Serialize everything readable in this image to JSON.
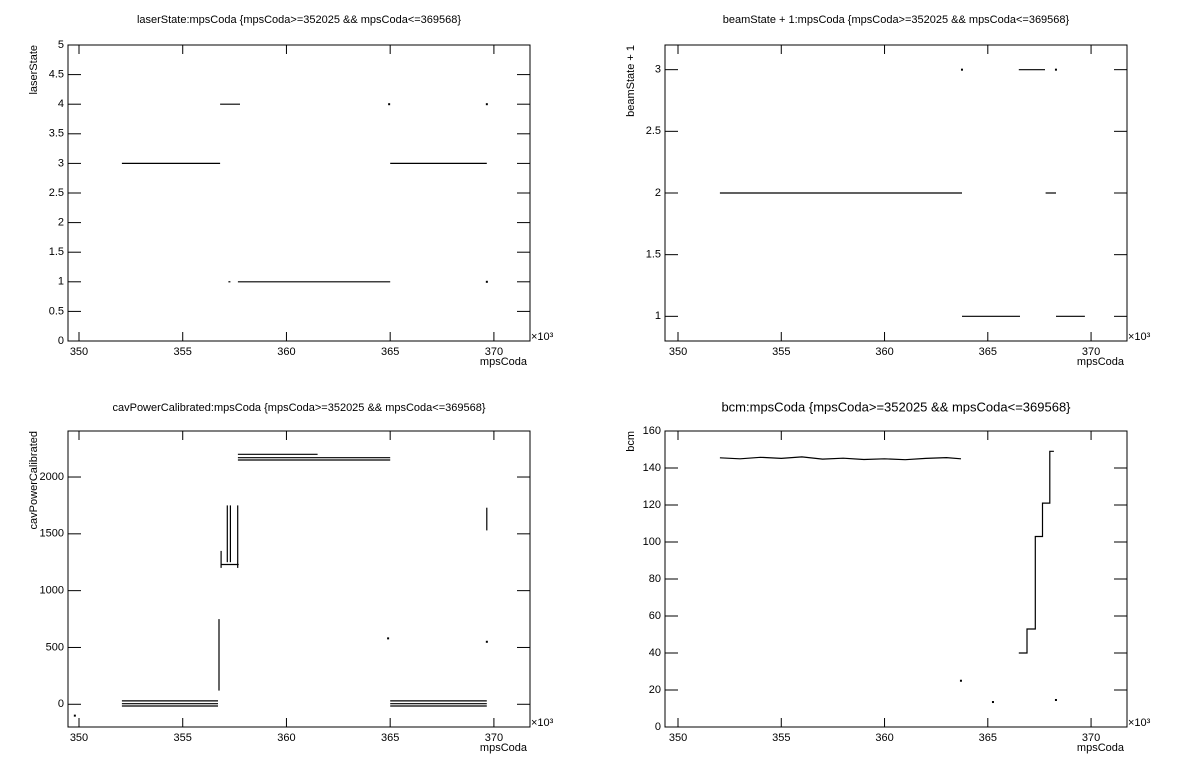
{
  "chart_data": [
    {
      "type": "line",
      "title": "laserState:mpsCoda {mpsCoda>=352025 && mpsCoda<=369568}",
      "xlabel": "mpsCoda",
      "ylabel": "laserState",
      "x_exponent": "×10³",
      "xlim": [
        349.47,
        371.74
      ],
      "xticks": [
        350,
        355,
        360,
        365,
        370
      ],
      "ylim": [
        0,
        5
      ],
      "yticks": [
        0,
        0.5,
        1,
        1.5,
        2,
        2.5,
        3,
        3.5,
        4,
        4.5,
        5
      ],
      "color": "#000000",
      "x": [
        352.07,
        356.8,
        null,
        356.8,
        357.76,
        null,
        357.2,
        357.3,
        null,
        357.66,
        365.0,
        null,
        365.0,
        369.66,
        null,
        364.95,
        null,
        369.66,
        null,
        369.66
      ],
      "values": [
        3,
        3,
        null,
        4,
        4,
        null,
        1,
        1,
        null,
        1,
        1,
        null,
        3,
        3,
        null,
        4,
        null,
        4,
        null,
        1
      ]
    },
    {
      "type": "line",
      "title": "beamState + 1:mpsCoda {mpsCoda>=352025 && mpsCoda<=369568}",
      "xlabel": "mpsCoda",
      "ylabel": "beamState + 1",
      "x_exponent": "×10³",
      "xlim": [
        349.37,
        371.74
      ],
      "xticks": [
        350,
        355,
        360,
        365,
        370
      ],
      "ylim": [
        0.8,
        3.2
      ],
      "yticks": [
        1,
        1.5,
        2,
        2.5,
        3
      ],
      "color": "#000000",
      "x": [
        352.03,
        363.75,
        null,
        363.75,
        366.56,
        null,
        363.75,
        null,
        366.5,
        367.77,
        null,
        368.3,
        null,
        367.8,
        368.3,
        null,
        368.3,
        369.7
      ],
      "values": [
        2,
        2,
        null,
        1,
        1,
        null,
        3,
        null,
        3,
        3,
        null,
        3,
        null,
        2,
        2,
        null,
        1,
        1
      ]
    },
    {
      "type": "line",
      "title": "cavPowerCalibrated:mpsCoda {mpsCoda>=352025 && mpsCoda<=369568}",
      "xlabel": "mpsCoda",
      "ylabel": "cavPowerCalibrated",
      "x_exponent": "×10³",
      "xlim": [
        349.47,
        371.74
      ],
      "xticks": [
        350,
        355,
        360,
        365,
        370
      ],
      "ylim": [
        -200,
        2405
      ],
      "yticks": [
        0,
        500,
        1000,
        1500,
        2000
      ],
      "color": "#000000",
      "x": [
        352.07,
        356.7,
        null,
        352.07,
        356.7,
        null,
        352.07,
        356.7,
        null,
        356.75,
        356.75,
        null,
        356.85,
        356.85,
        null,
        357.15,
        357.15,
        null,
        357.3,
        357.3,
        null,
        357.65,
        357.65,
        null,
        356.85,
        357.7,
        null,
        357.66,
        365,
        null,
        357.66,
        365,
        null,
        357.66,
        361.5,
        null,
        365,
        369.66,
        null,
        365,
        369.66,
        null,
        365,
        369.66,
        null,
        369.66,
        369.66,
        null,
        364.9,
        null,
        349.8,
        null,
        369.66
      ],
      "values": [
        30,
        30,
        null,
        5,
        5,
        null,
        -15,
        -15,
        null,
        120,
        750,
        null,
        1200,
        1350,
        null,
        1250,
        1750,
        null,
        1250,
        1750,
        null,
        1200,
        1750,
        null,
        1230,
        1230,
        null,
        2150,
        2150,
        null,
        2170,
        2170,
        null,
        2200,
        2200,
        null,
        30,
        30,
        null,
        5,
        5,
        null,
        -15,
        -15,
        null,
        1530,
        1730,
        null,
        580,
        null,
        -100,
        null,
        550
      ]
    },
    {
      "type": "line",
      "title": "bcm:mpsCoda {mpsCoda>=352025 && mpsCoda<=369568}",
      "xlabel": "mpsCoda",
      "ylabel": "bcm",
      "x_exponent": "×10³",
      "xlim": [
        349.37,
        371.74
      ],
      "xticks": [
        350,
        355,
        360,
        365,
        370
      ],
      "ylim": [
        0,
        160
      ],
      "yticks": [
        0,
        20,
        40,
        60,
        80,
        100,
        120,
        140,
        160
      ],
      "color": "#000000",
      "x": [
        352.03,
        353,
        354,
        355,
        356,
        357,
        358,
        359,
        360,
        361,
        362,
        363,
        363.7,
        null,
        363.7,
        null,
        366.5,
        366.9,
        366.9,
        367.3,
        367.3,
        367.65,
        367.65,
        368.0,
        368.0,
        368.2,
        null,
        365.25,
        null,
        368.3
      ],
      "values": [
        145.5,
        145,
        145.8,
        145.2,
        146,
        144.8,
        145.3,
        144.6,
        145,
        144.5,
        145.2,
        145.6,
        145,
        null,
        25,
        null,
        40,
        40,
        53,
        53,
        103,
        103,
        121,
        121,
        149,
        149,
        null,
        13.5,
        null,
        14.6
      ]
    }
  ]
}
